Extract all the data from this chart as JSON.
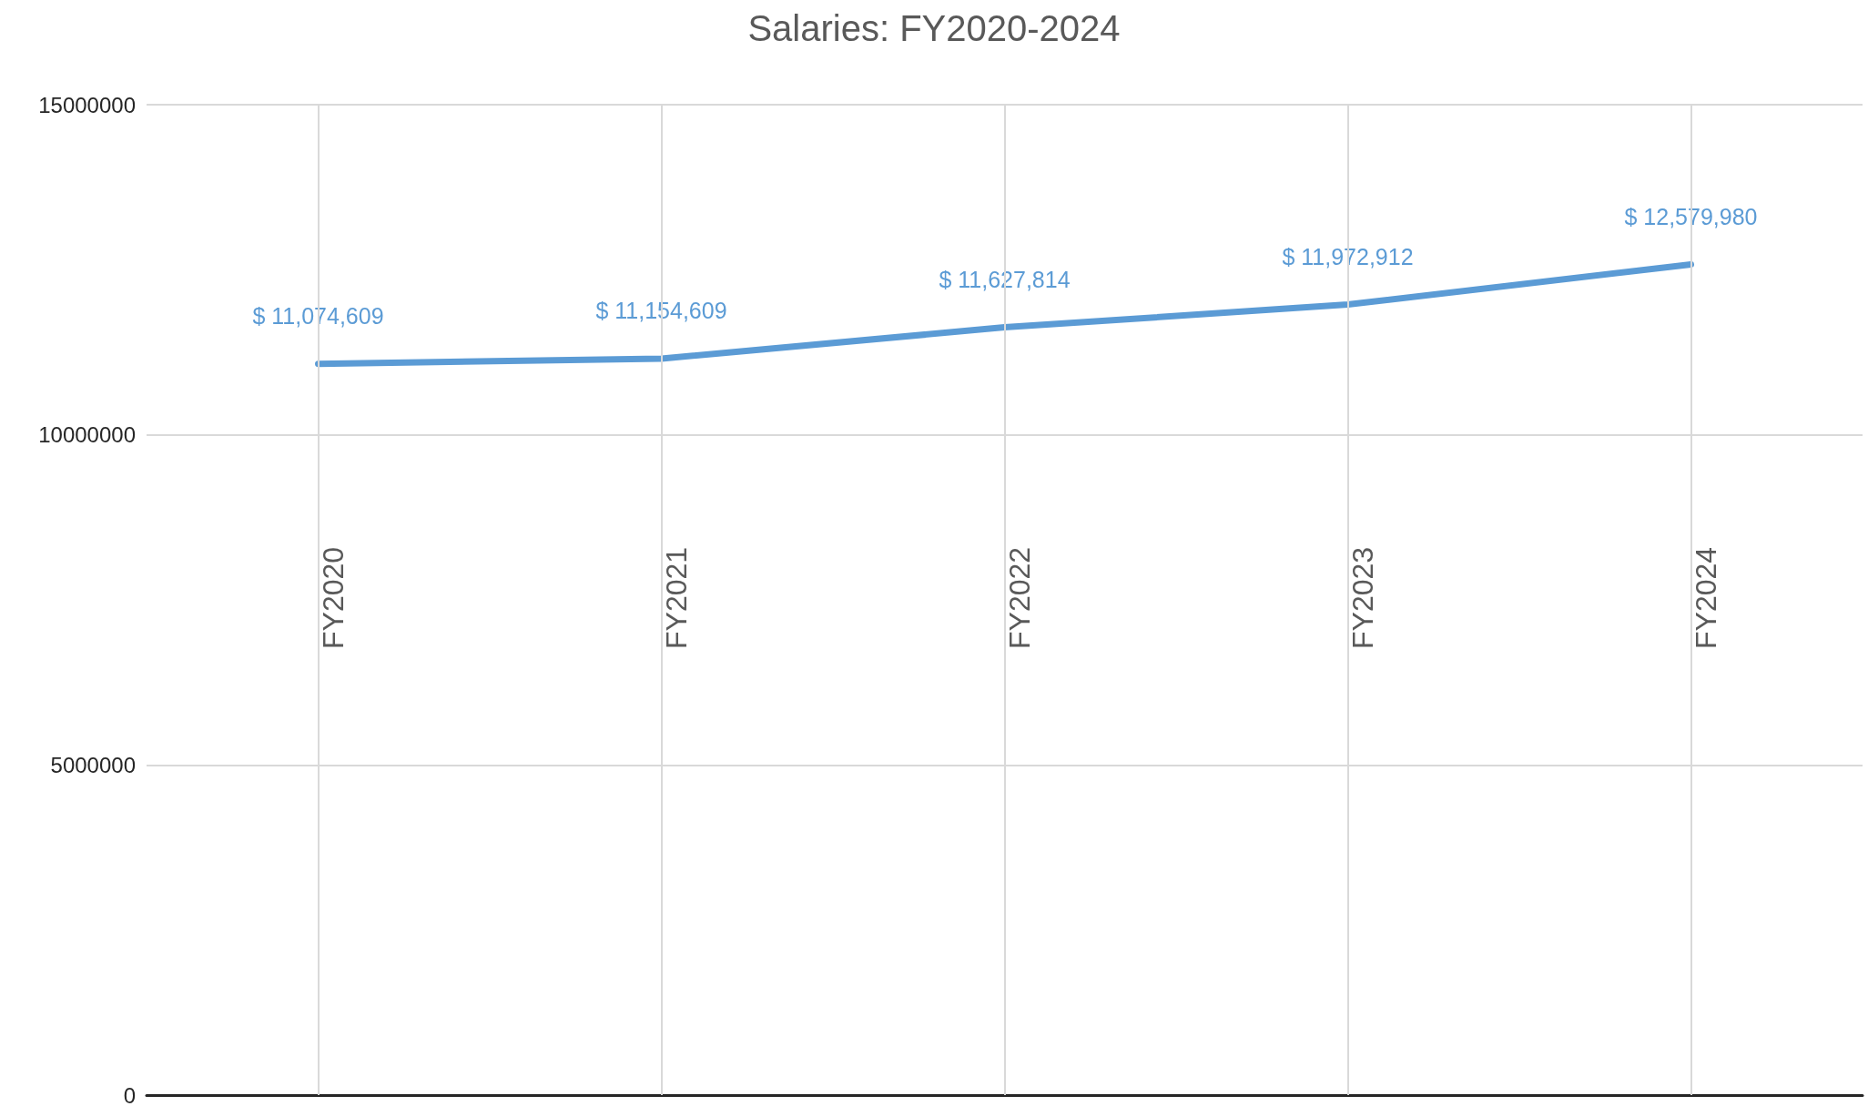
{
  "chart_data": {
    "type": "line",
    "title": "Salaries: FY2020-2024",
    "categories": [
      "FY2020",
      "FY2021",
      "FY2022",
      "FY2023",
      "FY2024"
    ],
    "series": [
      {
        "color": "#5b9bd5",
        "values": [
          11074609,
          11154609,
          11627814,
          11972912,
          12579980
        ],
        "value_labels": [
          "$ 11,074,609",
          "$ 11,154,609",
          "$ 11,627,814",
          "$ 11,972,912",
          "$ 12,579,980"
        ]
      }
    ],
    "ylim": [
      0,
      15000000
    ],
    "yticks": [
      0,
      5000000,
      10000000,
      15000000
    ],
    "grid": true,
    "marker": "none",
    "line_style": "solid"
  }
}
